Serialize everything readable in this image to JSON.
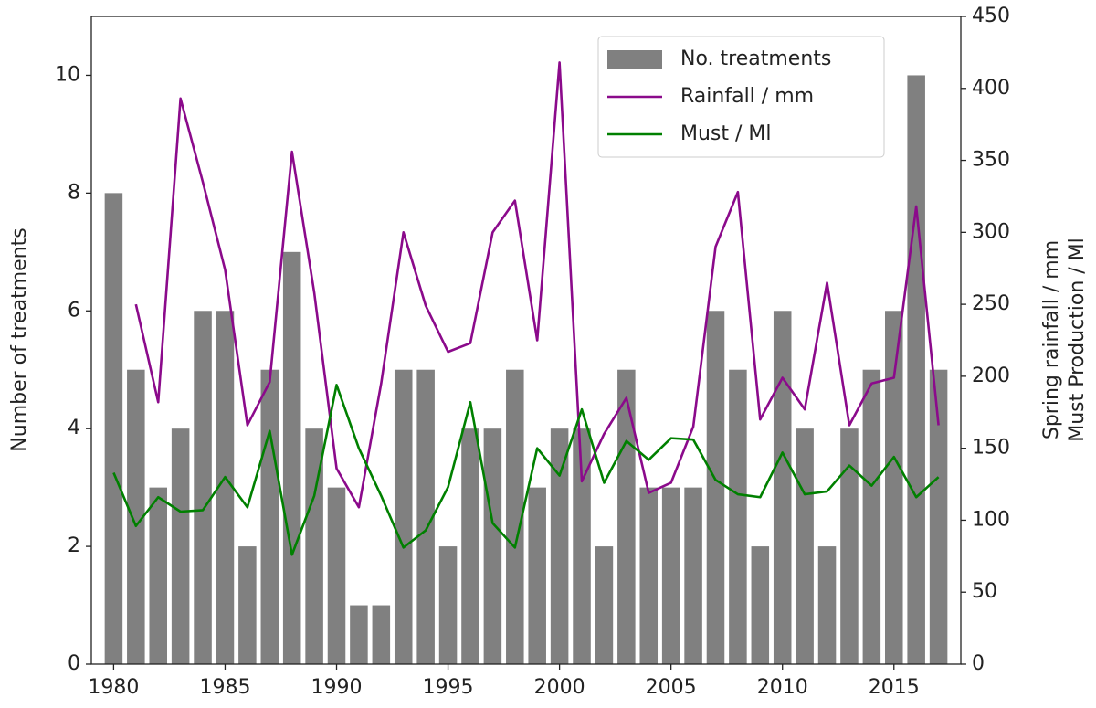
{
  "chart_data": {
    "type": "bar",
    "x": [
      1980,
      1981,
      1982,
      1983,
      1984,
      1985,
      1986,
      1987,
      1988,
      1989,
      1990,
      1991,
      1992,
      1993,
      1994,
      1995,
      1996,
      1997,
      1998,
      1999,
      2000,
      2001,
      2002,
      2003,
      2004,
      2005,
      2006,
      2007,
      2008,
      2009,
      2010,
      2011,
      2012,
      2013,
      2014,
      2015,
      2016,
      2017
    ],
    "series": [
      {
        "name": "No. treatments",
        "type": "bar",
        "color": "#808080",
        "values": [
          8,
          5,
          3,
          4,
          6,
          6,
          2,
          5,
          7,
          4,
          3,
          1,
          1,
          5,
          5,
          2,
          4,
          4,
          5,
          3,
          4,
          4,
          2,
          5,
          3,
          3,
          3,
          6,
          5,
          2,
          6,
          4,
          2,
          4,
          5,
          6,
          10,
          5
        ]
      },
      {
        "name": "Rainfall / mm",
        "type": "line",
        "axis": "y2",
        "color": "#8b0a8b",
        "values": [
          null,
          250,
          182,
          393,
          335,
          274,
          166,
          196,
          356,
          258,
          136,
          109,
          195,
          300,
          249,
          217,
          223,
          300,
          322,
          225,
          418,
          127,
          160,
          185,
          119,
          126,
          165,
          290,
          328,
          170,
          199,
          177,
          265,
          166,
          195,
          199,
          318,
          166
        ]
      },
      {
        "name": "Must / Ml",
        "type": "line",
        "axis": "y2",
        "color": "#008000",
        "values": [
          133,
          96,
          116,
          106,
          107,
          130,
          109,
          162,
          76,
          117,
          194,
          150,
          117,
          81,
          93,
          123,
          182,
          98,
          81,
          150,
          131,
          177,
          126,
          155,
          142,
          157,
          156,
          128,
          118,
          116,
          147,
          118,
          120,
          138,
          124,
          144,
          116,
          130
        ]
      }
    ],
    "ylabel": "Number of treatments",
    "y2label": [
      "Spring rainfall / mm",
      "Must Production / Ml"
    ],
    "xlim": [
      1979,
      2018
    ],
    "xticks": [
      1980,
      1985,
      1990,
      1995,
      2000,
      2005,
      2010,
      2015
    ],
    "ylim": [
      0,
      11
    ],
    "yticks": [
      0,
      2,
      4,
      6,
      8,
      10
    ],
    "y2lim": [
      0,
      450
    ],
    "y2ticks": [
      0,
      50,
      100,
      150,
      200,
      250,
      300,
      350,
      400,
      450
    ],
    "grid": false,
    "legend": "upper right"
  }
}
